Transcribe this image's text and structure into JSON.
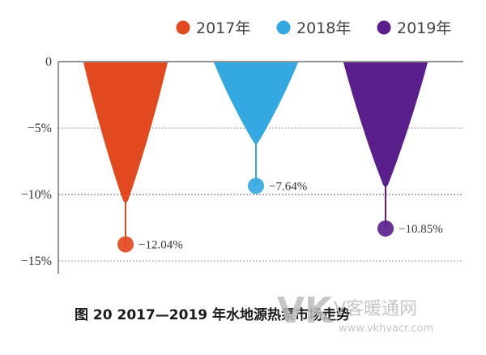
{
  "chart_data": {
    "type": "bar",
    "categories": [
      "2017年",
      "2018年",
      "2019年"
    ],
    "series": [
      {
        "name": "2017年",
        "value": -12.04,
        "label": "−12.04%",
        "color": "#e3491f"
      },
      {
        "name": "2018年",
        "value": -7.64,
        "label": "−7.64%",
        "color": "#34a9e1"
      },
      {
        "name": "2019年",
        "value": -10.85,
        "label": "−10.85%",
        "color": "#5a1f8c"
      }
    ],
    "y_ticks": [
      {
        "value": 0,
        "label": "0"
      },
      {
        "value": -5,
        "label": "−5%"
      },
      {
        "value": -10,
        "label": "−10%"
      },
      {
        "value": -15,
        "label": "−15%"
      }
    ],
    "ylim": [
      -16,
      0
    ],
    "legend_position": "top-right",
    "grid": "dotted horizontal",
    "caption": "图 20    2017—2019 年水地源热泵市场走势"
  },
  "watermark": {
    "logo": "VK",
    "text": "V客暖通网",
    "url": "www.vkhvacr.com"
  }
}
